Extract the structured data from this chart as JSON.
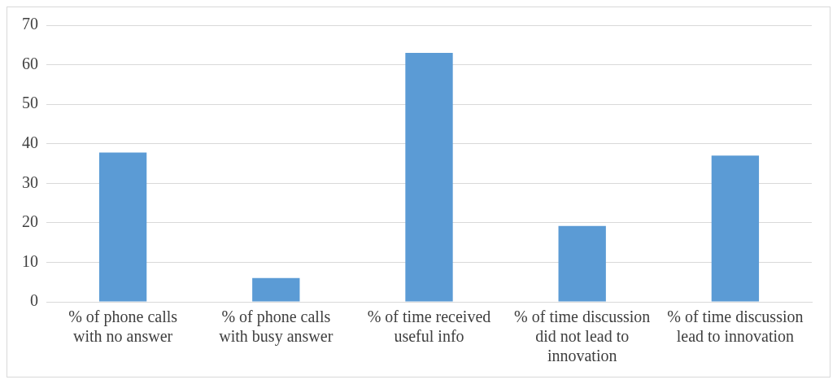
{
  "chart_data": {
    "type": "bar",
    "categories": [
      "% of phone calls with no answer",
      "% of phone calls with busy answer",
      "% of time received useful info",
      "% of time discussion did not lead to innovation",
      "% of time discussion lead to innovation"
    ],
    "values": [
      37.8,
      6,
      63,
      19.2,
      37
    ],
    "color": "#5b9bd5",
    "ylim": [
      0,
      70
    ],
    "yticks": [
      0,
      10,
      20,
      30,
      40,
      50,
      60,
      70
    ],
    "grid": "y",
    "legend": false
  }
}
